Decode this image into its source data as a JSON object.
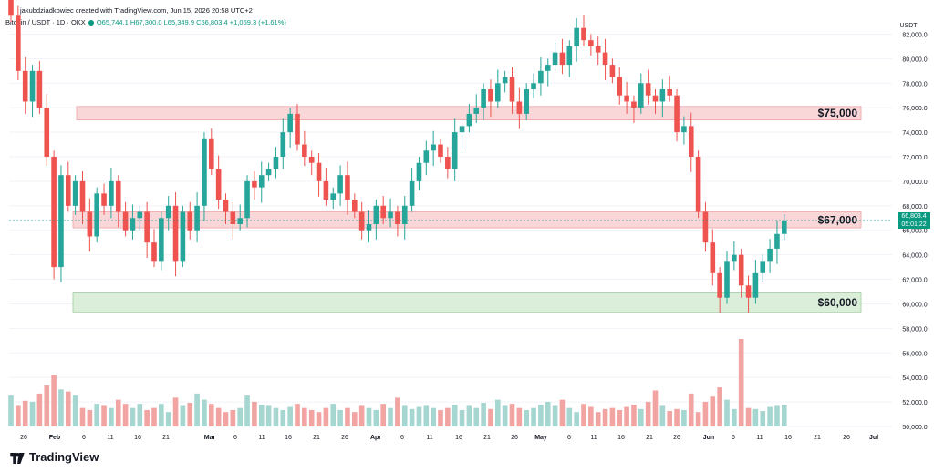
{
  "header": {
    "author_line": "jakubdziadkowiec created with TradingView.com, Jun 15, 2026 20:58 UTC+2",
    "symbol_line": "Bitcoin / USDT · 1D · OKX",
    "ohlc": "O65,744.1 H67,300.0 L65,349.9 C66,803.4 +1,059.3 (+1.61%)"
  },
  "axis": {
    "currency": "USDT",
    "last_price": "66,803.4",
    "countdown": "05:01:22"
  },
  "footer": {
    "brand": "TradingView"
  },
  "colors": {
    "up": "#26a69a",
    "down": "#ef5350",
    "vol_up": "#a5d6d0",
    "vol_down": "#f2a4a3",
    "res_zone": "#f8d0d1",
    "sup_zone": "#d4ebd2"
  },
  "chart_data": {
    "type": "candlestick",
    "ylim": [
      50000,
      83000
    ],
    "y_ticks": [
      "82,000.0",
      "80,000.0",
      "78,000.0",
      "76,000.0",
      "74,000.0",
      "72,000.0",
      "70,000.0",
      "68,000.0",
      "66,000.0",
      "64,000.0",
      "62,000.0",
      "60,000.0",
      "58,000.0",
      "56,000.0",
      "54,000.0",
      "52,000.0",
      "50,000.0"
    ],
    "y_tick_values": [
      82000,
      80000,
      78000,
      76000,
      74000,
      72000,
      70000,
      68000,
      66000,
      64000,
      62000,
      60000,
      58000,
      56000,
      54000,
      52000,
      50000
    ],
    "x_tick_labels": [
      "26",
      "Feb",
      "6",
      "11",
      "16",
      "21",
      "Mar",
      "6",
      "11",
      "16",
      "21",
      "26",
      "Apr",
      "6",
      "11",
      "16",
      "21",
      "26",
      "May",
      "6",
      "11",
      "16",
      "21",
      "26",
      "Jun",
      "6",
      "11",
      "16",
      "21",
      "26",
      "Jul"
    ],
    "zones": [
      {
        "label": "$75,000",
        "low": 75000,
        "high": 76100,
        "kind": "resistance"
      },
      {
        "label": "$67,000",
        "low": 66200,
        "high": 67500,
        "kind": "resistance"
      },
      {
        "label": "$60,000",
        "low": 59300,
        "high": 60900,
        "kind": "support"
      }
    ],
    "closes": [
      83500,
      79000,
      76500,
      79000,
      76000,
      72000,
      63000,
      70500,
      68000,
      70000,
      67500,
      65500,
      69000,
      68000,
      70000,
      67500,
      66000,
      67000,
      67500,
      65000,
      63500,
      67000,
      68000,
      63500,
      67500,
      66000,
      68000,
      73500,
      71000,
      68500,
      67500,
      66500,
      67000,
      70000,
      69500,
      70500,
      71000,
      72000,
      74000,
      75500,
      73000,
      72000,
      71500,
      70000,
      68500,
      69000,
      70500,
      68500,
      67500,
      66000,
      66500,
      68000,
      67000,
      67500,
      66500,
      68000,
      70000,
      71500,
      72500,
      73000,
      72000,
      71000,
      74000,
      74500,
      75500,
      76000,
      77500,
      76500,
      78000,
      78500,
      76500,
      75500,
      77500,
      78000,
      79000,
      79500,
      80500,
      79500,
      81000,
      82500,
      81500,
      81000,
      80500,
      79500,
      78500,
      77000,
      76500,
      76000,
      78000,
      77000,
      76500,
      77500,
      77000,
      74000,
      74500,
      72000,
      67500,
      65000,
      62500,
      60500,
      63500,
      64000,
      61500,
      60500,
      62500,
      63500,
      64500,
      65700,
      66803.4
    ],
    "volumes": [
      3,
      2,
      2.5,
      2.4,
      3.2,
      4,
      5,
      3.6,
      3.4,
      3,
      1.8,
      1.6,
      2.2,
      2,
      1.8,
      2.6,
      2.2,
      1.8,
      2.2,
      1.6,
      1.8,
      2.2,
      1.4,
      2.8,
      2,
      2.3,
      3.2,
      2.6,
      2.2,
      1.8,
      1.4,
      1.6,
      1.8,
      3,
      2.4,
      2.1,
      2,
      1.8,
      1.6,
      1.9,
      2.2,
      1.8,
      1.6,
      1.4,
      1.8,
      2.2,
      1.6,
      1.8,
      1.4,
      2.0,
      1.8,
      1.6,
      2.2,
      1.8,
      2.8,
      2.0,
      1.7,
      1.9,
      2.0,
      1.8,
      1.6,
      1.8,
      2.1,
      1.6,
      2.0,
      1.8,
      2.3,
      1.7,
      2.6,
      2.0,
      2.2,
      1.8,
      1.6,
      1.8,
      2.1,
      2.4,
      2.0,
      2.6,
      1.8,
      1.4,
      2.2,
      1.9,
      1.4,
      1.7,
      1.8,
      1.6,
      1.9,
      2.1,
      1.7,
      2.4,
      3.5,
      2.0,
      1.5,
      1.7,
      1.6,
      3.2,
      1.4,
      2.4,
      2.9,
      3.8,
      2.6,
      1.7,
      8.5,
      1.8,
      1.7,
      1.5,
      1.9,
      2.0,
      2.1
    ],
    "bar_dates_note": "daily candles from late January to Jun 15 2026"
  }
}
